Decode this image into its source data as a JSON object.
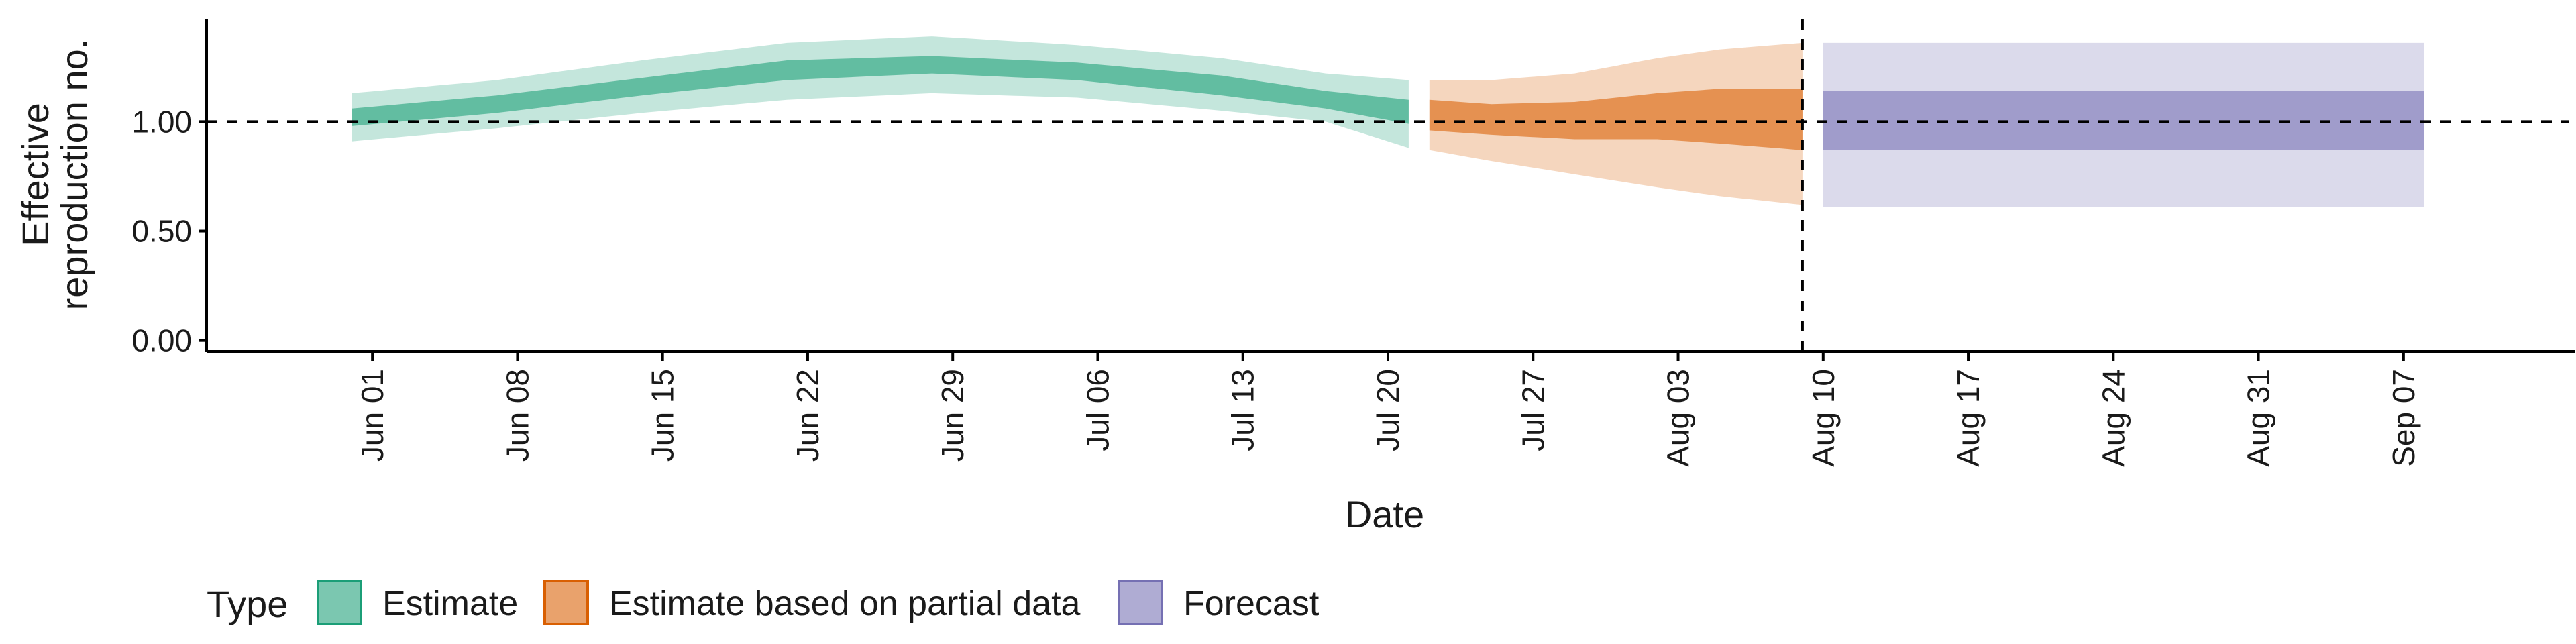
{
  "chart_data": {
    "type": "area",
    "xlabel": "Date",
    "ylabel_lines": [
      "Effective",
      "reproduction no."
    ],
    "y_ticks": [
      "0.00",
      "0.50",
      "1.00"
    ],
    "y_tick_values": [
      0,
      0.5,
      1.0
    ],
    "ylim": [
      -0.05,
      1.47
    ],
    "x_ticks": [
      "Jun 01",
      "Jun 08",
      "Jun 15",
      "Jun 22",
      "Jun 29",
      "Jul 06",
      "Jul 13",
      "Jul 20",
      "Jul 27",
      "Aug 03",
      "Aug 10",
      "Aug 17",
      "Aug 24",
      "Aug 31",
      "Sep 07"
    ],
    "x_tick_values": [
      "2020-06-01",
      "2020-06-08",
      "2020-06-15",
      "2020-06-22",
      "2020-06-29",
      "2020-07-06",
      "2020-07-13",
      "2020-07-20",
      "2020-07-27",
      "2020-08-03",
      "2020-08-10",
      "2020-08-17",
      "2020-08-24",
      "2020-08-31",
      "2020-09-07"
    ],
    "xlim": [
      "2020-05-24",
      "2020-09-15"
    ],
    "reference_hline": 1.0,
    "reference_vline": "2020-08-09",
    "grid": false,
    "legend_placement": "bottom-left",
    "legend_title": "Type",
    "series": [
      {
        "name": "Estimate",
        "color": "#1b9e77",
        "dates": [
          "2020-05-31",
          "2020-06-07",
          "2020-06-14",
          "2020-06-21",
          "2020-06-28",
          "2020-07-05",
          "2020-07-12",
          "2020-07-17",
          "2020-07-21"
        ],
        "lower_90": [
          0.91,
          0.97,
          1.04,
          1.1,
          1.13,
          1.11,
          1.05,
          1.0,
          0.88
        ],
        "lower_50": [
          0.98,
          1.04,
          1.12,
          1.19,
          1.22,
          1.19,
          1.12,
          1.06,
          0.99
        ],
        "upper_50": [
          1.06,
          1.12,
          1.2,
          1.28,
          1.3,
          1.27,
          1.21,
          1.14,
          1.1
        ],
        "upper_90": [
          1.13,
          1.19,
          1.28,
          1.36,
          1.39,
          1.35,
          1.29,
          1.22,
          1.19
        ]
      },
      {
        "name": "Estimate based on partial data",
        "color": "#d95f02",
        "dates": [
          "2020-07-22",
          "2020-07-25",
          "2020-07-29",
          "2020-08-02",
          "2020-08-05",
          "2020-08-09"
        ],
        "lower_90": [
          0.87,
          0.82,
          0.76,
          0.7,
          0.66,
          0.62
        ],
        "lower_50": [
          0.96,
          0.94,
          0.92,
          0.92,
          0.9,
          0.87
        ],
        "upper_50": [
          1.1,
          1.08,
          1.09,
          1.13,
          1.15,
          1.15
        ],
        "upper_90": [
          1.19,
          1.19,
          1.22,
          1.29,
          1.33,
          1.36
        ]
      },
      {
        "name": "Forecast",
        "color": "#7570b3",
        "dates": [
          "2020-08-10",
          "2020-09-08"
        ],
        "lower_90": [
          0.61,
          0.61
        ],
        "lower_50": [
          0.87,
          0.87
        ],
        "upper_50": [
          1.14,
          1.14
        ],
        "upper_90": [
          1.36,
          1.36
        ]
      }
    ]
  }
}
